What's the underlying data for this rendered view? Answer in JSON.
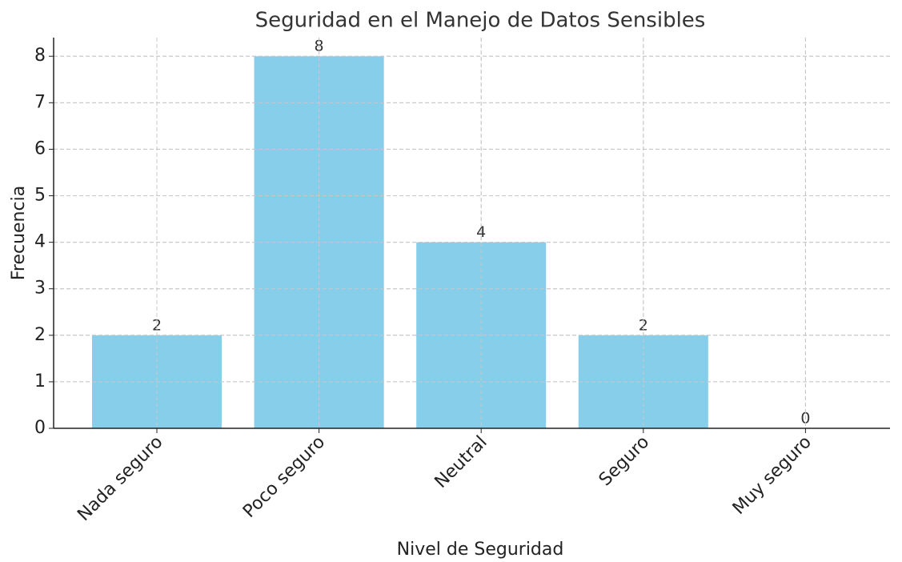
{
  "chart_data": {
    "type": "bar",
    "title": "Seguridad en el Manejo de Datos Sensibles",
    "x_label": "Nivel de Seguridad",
    "y_label": "Frecuencia",
    "categories": [
      "Nada seguro",
      "Poco seguro",
      "Neutral",
      "Seguro",
      "Muy seguro"
    ],
    "values": [
      2,
      8,
      4,
      2,
      0
    ],
    "color": "#87ceeb",
    "ylim": [
      0,
      8.4
    ],
    "yticks": [
      0,
      1,
      2,
      3,
      4,
      5,
      6,
      7,
      8
    ],
    "grid": true
  }
}
